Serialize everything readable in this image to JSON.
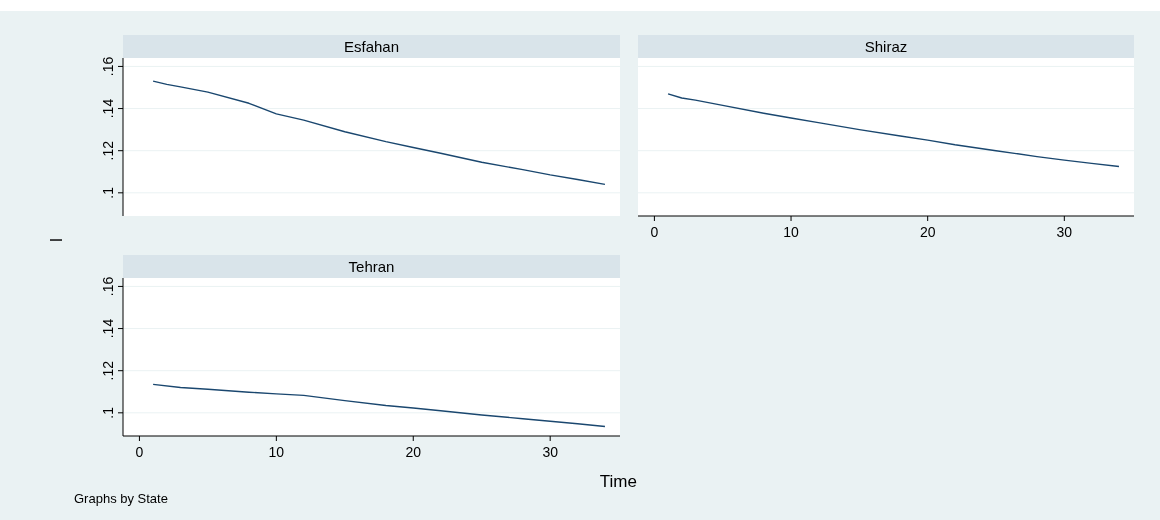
{
  "chart_data": [
    {
      "type": "line",
      "title": "Esfahan",
      "ylabel": "I",
      "x": [
        1,
        2,
        3,
        5,
        8,
        10,
        12,
        15,
        18,
        20,
        22,
        25,
        28,
        30,
        32,
        34
      ],
      "series": [
        {
          "color": "#1a476f",
          "values": [
            0.153,
            0.1515,
            0.1503,
            0.1478,
            0.1425,
            0.1375,
            0.1345,
            0.129,
            0.1243,
            0.1215,
            0.1188,
            0.1145,
            0.111,
            0.1085,
            0.1063,
            0.104
          ]
        }
      ],
      "xlim": [
        -1.2,
        35.1
      ],
      "ylim": [
        0.089,
        0.164
      ],
      "yticks": [
        {
          "value": 0.1,
          "label": ".1"
        },
        {
          "value": 0.12,
          "label": ".12"
        },
        {
          "value": 0.14,
          "label": ".14"
        },
        {
          "value": 0.16,
          "label": ".16"
        }
      ],
      "grid": "y",
      "tick_labels": "y",
      "line_style": "solid"
    },
    {
      "type": "line",
      "title": "Shiraz",
      "x": [
        1,
        2,
        3,
        5,
        8,
        10,
        12,
        15,
        18,
        20,
        22,
        25,
        28,
        30,
        32,
        34
      ],
      "series": [
        {
          "color": "#1a476f",
          "values": [
            0.147,
            0.145,
            0.144,
            0.1415,
            0.1378,
            0.1355,
            0.1333,
            0.13,
            0.127,
            0.125,
            0.1228,
            0.12,
            0.1172,
            0.1155,
            0.114,
            0.1125
          ]
        }
      ],
      "xlim": [
        -1.2,
        35.1
      ],
      "ylim": [
        0.089,
        0.164
      ],
      "xticks": [
        0,
        10,
        20,
        30
      ],
      "yticks": [
        0.1,
        0.12,
        0.14,
        0.16
      ],
      "grid": "y",
      "tick_labels": "x",
      "line_style": "solid"
    },
    {
      "type": "line",
      "title": "Tehran",
      "xlabel": "Time",
      "annotations": [
        "Graphs by State"
      ],
      "x": [
        1,
        3,
        5,
        8,
        10,
        12,
        15,
        18,
        20,
        22,
        25,
        28,
        30,
        32,
        34
      ],
      "series": [
        {
          "color": "#1a476f",
          "values": [
            0.1135,
            0.112,
            0.1112,
            0.1098,
            0.109,
            0.1083,
            0.1058,
            0.1035,
            0.1023,
            0.101,
            0.099,
            0.0972,
            0.096,
            0.0948,
            0.0935
          ]
        }
      ],
      "xlim": [
        -1.2,
        35.1
      ],
      "ylim": [
        0.089,
        0.164
      ],
      "xticks": [
        0,
        10,
        20,
        30
      ],
      "yticks": [
        {
          "value": 0.1,
          "label": ".1"
        },
        {
          "value": 0.12,
          "label": ".12"
        },
        {
          "value": 0.14,
          "label": ".14"
        },
        {
          "value": 0.16,
          "label": ".16"
        }
      ],
      "grid": "y",
      "line_style": "solid"
    }
  ]
}
